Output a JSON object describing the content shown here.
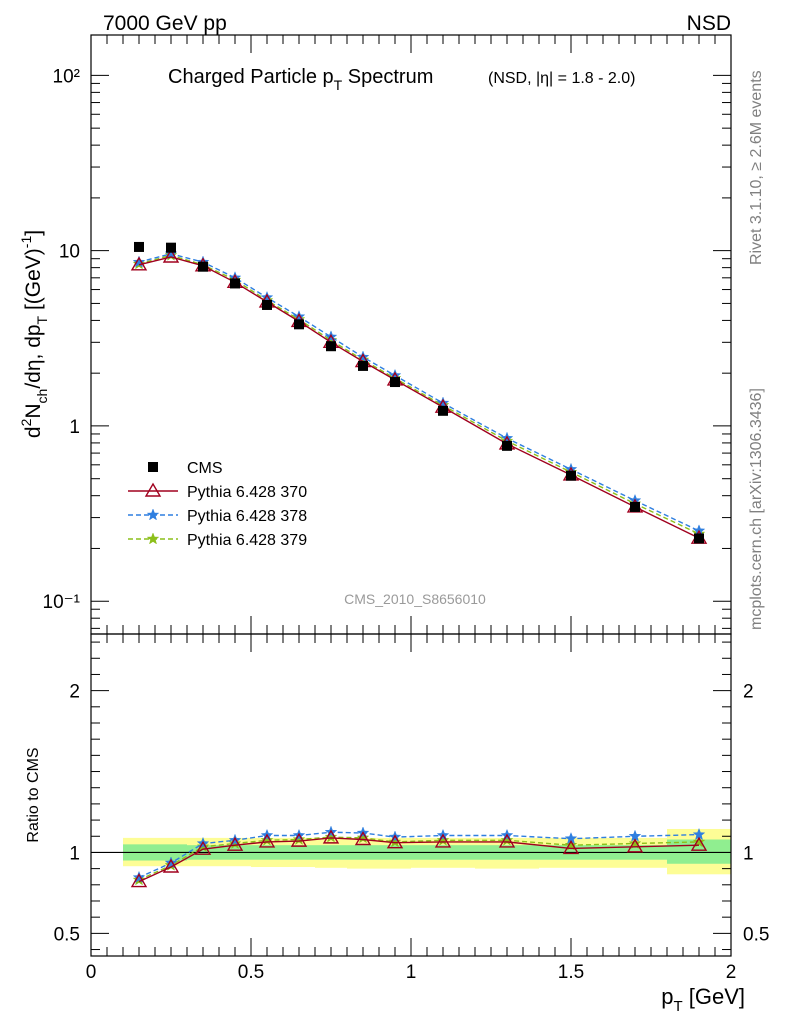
{
  "header": {
    "left": "7000 GeV pp",
    "right": "NSD"
  },
  "side": {
    "rivet": "Rivet 3.1.10, ≥ 2.6M events",
    "mcplots": "mcplots.cern.ch [arXiv:1306.3436]"
  },
  "chart_data": [
    {
      "type": "scatter",
      "title_main": "Charged Particle p",
      "title_sub": "T",
      "title_main2": " Spectrum",
      "title_extra": "(NSD, |η| = 1.8 - 2.0)",
      "ylabel": "d²N_ch/dη, dp_T [(GeV)⁻¹]",
      "watermark": "CMS_2010_S8656010",
      "yscale": "log",
      "xlim": [
        0,
        2
      ],
      "ylim": [
        0.065,
        170
      ],
      "ytick_labels": [
        "10⁻¹",
        "1",
        "10",
        "10²"
      ],
      "legend_position": "middle-left",
      "x": [
        0.15,
        0.25,
        0.35,
        0.45,
        0.55,
        0.65,
        0.75,
        0.85,
        0.95,
        1.1,
        1.3,
        1.5,
        1.7,
        1.9
      ],
      "series": [
        {
          "name": "CMS",
          "color": "#000000",
          "marker": "square",
          "values": [
            10.5,
            10.4,
            8.1,
            6.5,
            4.9,
            3.8,
            2.85,
            2.2,
            1.78,
            1.22,
            0.77,
            0.52,
            0.345,
            0.228
          ]
        },
        {
          "name": "Pythia 6.428 370",
          "color": "#a0001e",
          "marker": "triangle",
          "dash": "",
          "values": [
            8.3,
            9.2,
            8.2,
            6.6,
            5.1,
            3.95,
            3.0,
            2.33,
            1.83,
            1.28,
            0.79,
            0.525,
            0.345,
            0.229
          ]
        },
        {
          "name": "Pythia 6.428 378",
          "color": "#2f7fe0",
          "marker": "star",
          "dash": "5,3",
          "values": [
            8.6,
            9.6,
            8.6,
            7.0,
            5.4,
            4.2,
            3.22,
            2.47,
            1.94,
            1.35,
            0.85,
            0.565,
            0.375,
            0.252
          ]
        },
        {
          "name": "Pythia 6.428 379",
          "color": "#8cbf1a",
          "marker": "star",
          "dash": "5,3",
          "values": [
            8.4,
            9.4,
            8.3,
            6.8,
            5.2,
            4.05,
            3.08,
            2.38,
            1.87,
            1.31,
            0.82,
            0.545,
            0.36,
            0.242
          ]
        }
      ]
    },
    {
      "type": "line",
      "ylabel": "Ratio to CMS",
      "xlabel_main": "p",
      "xlabel_sub": "T",
      "xlabel_unit": " [GeV]",
      "xlim": [
        0,
        2
      ],
      "ylim": [
        0.36,
        2.35
      ],
      "xticks": [
        0,
        0.5,
        1,
        1.5,
        2
      ],
      "xtick_labels": [
        "0",
        "0.5",
        "1",
        "1.5",
        "2"
      ],
      "yticks": [
        0.5,
        1,
        2
      ],
      "ytick_labels": [
        "0.5",
        "1",
        "2"
      ],
      "x": [
        0.15,
        0.25,
        0.35,
        0.45,
        0.55,
        0.65,
        0.75,
        0.85,
        0.95,
        1.1,
        1.3,
        1.5,
        1.7,
        1.9
      ],
      "band_edges": [
        0.1,
        0.2,
        0.3,
        0.4,
        0.5,
        0.6,
        0.7,
        0.8,
        0.9,
        1.0,
        1.2,
        1.4,
        1.6,
        1.8,
        2.0
      ],
      "band_stat": [
        [
          0.95,
          1.05
        ],
        [
          0.95,
          1.05
        ],
        [
          0.955,
          1.045
        ],
        [
          0.955,
          1.045
        ],
        [
          0.955,
          1.045
        ],
        [
          0.955,
          1.045
        ],
        [
          0.955,
          1.045
        ],
        [
          0.955,
          1.045
        ],
        [
          0.955,
          1.045
        ],
        [
          0.955,
          1.045
        ],
        [
          0.955,
          1.045
        ],
        [
          0.955,
          1.045
        ],
        [
          0.955,
          1.045
        ],
        [
          0.93,
          1.08
        ]
      ],
      "band_syst": [
        [
          0.915,
          1.09
        ],
        [
          0.915,
          1.09
        ],
        [
          0.915,
          1.09
        ],
        [
          0.915,
          1.09
        ],
        [
          0.91,
          1.09
        ],
        [
          0.91,
          1.09
        ],
        [
          0.905,
          1.09
        ],
        [
          0.9,
          1.09
        ],
        [
          0.9,
          1.09
        ],
        [
          0.905,
          1.09
        ],
        [
          0.9,
          1.09
        ],
        [
          0.905,
          1.09
        ],
        [
          0.905,
          1.09
        ],
        [
          0.865,
          1.145
        ]
      ],
      "series": [
        {
          "name": "Pythia 6.428 370",
          "color": "#a0001e",
          "marker": "triangle",
          "dash": "",
          "values": [
            0.82,
            0.91,
            1.02,
            1.045,
            1.065,
            1.07,
            1.09,
            1.08,
            1.06,
            1.065,
            1.065,
            1.025,
            1.035,
            1.045
          ]
        },
        {
          "name": "Pythia 6.428 378",
          "color": "#2f7fe0",
          "marker": "star",
          "dash": "5,3",
          "values": [
            0.845,
            0.935,
            1.055,
            1.075,
            1.105,
            1.105,
            1.125,
            1.12,
            1.095,
            1.105,
            1.105,
            1.085,
            1.1,
            1.11
          ]
        },
        {
          "name": "Pythia 6.428 379",
          "color": "#8cbf1a",
          "marker": "star",
          "dash": "5,3",
          "values": [
            0.83,
            0.92,
            1.035,
            1.055,
            1.075,
            1.08,
            1.095,
            1.09,
            1.065,
            1.075,
            1.075,
            1.045,
            1.055,
            1.065
          ]
        }
      ]
    }
  ]
}
